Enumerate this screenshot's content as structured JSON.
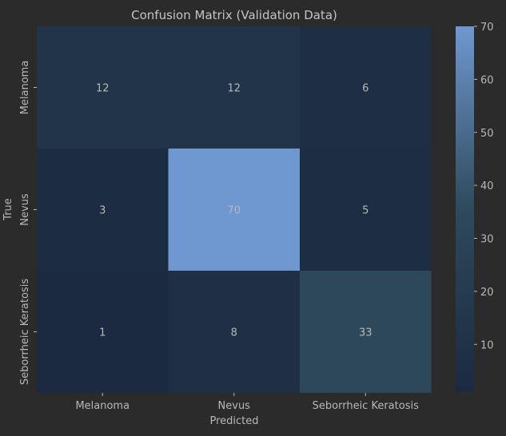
{
  "chart_data": {
    "type": "heatmap",
    "title": "Confusion Matrix (Validation Data)",
    "xlabel": "Predicted",
    "ylabel": "True",
    "x_categories": [
      "Melanoma",
      "Nevus",
      "Seborrheic Keratosis"
    ],
    "y_categories": [
      "Melanoma",
      "Nevus",
      "Seborrheic Keratosis"
    ],
    "values": [
      [
        12,
        12,
        6
      ],
      [
        3,
        70,
        5
      ],
      [
        1,
        8,
        33
      ]
    ],
    "colorbar": {
      "vmin": 1,
      "vmax": 70,
      "ticks": [
        10,
        20,
        30,
        40,
        50,
        60,
        70
      ],
      "low_color": "#1b2a40",
      "mid_color": "#2e4a5c",
      "high_color": "#7098d0"
    },
    "annotation_color": "#b0b0b0"
  }
}
